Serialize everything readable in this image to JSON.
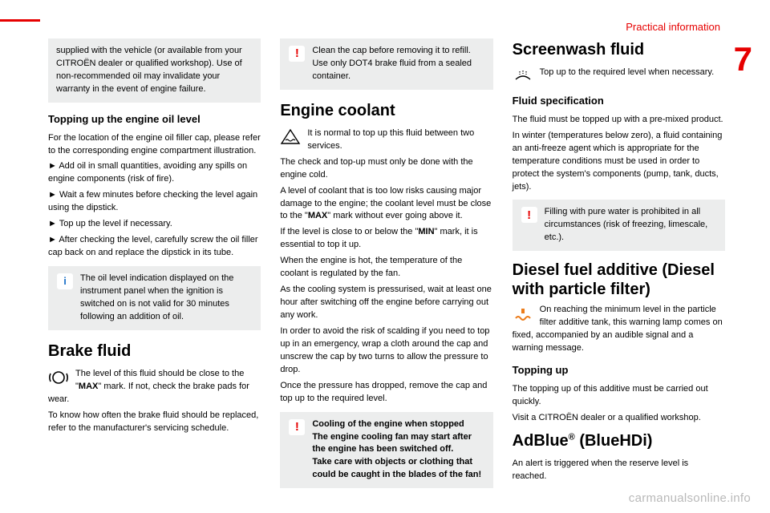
{
  "layout": {
    "section_label": "Practical information",
    "section_label_color": "#e60000",
    "section_number": "7",
    "section_number_color": "#e60000",
    "red_bar_width": 50,
    "watermark": "carmanualsonline.info"
  },
  "col1": {
    "box1": "supplied with the vehicle (or available from your CITROËN dealer or qualified workshop). Use of non-recommended oil may invalidate your warranty in the event of engine failure.",
    "h_topping": "Topping up the engine oil level",
    "topping_p1": "For the location of the engine oil filler cap, please refer to the corresponding engine compartment illustration.",
    "b1": "►  Add oil in small quantities, avoiding any spills on engine components (risk of fire).",
    "b2": "►  Wait a few minutes before checking the level again using the dipstick.",
    "b3": "►  Top up the level if necessary.",
    "b4": "►  After checking the level, carefully screw the oil filler cap back on and replace the dipstick in its tube.",
    "info_box": "The oil level indication displayed on the instrument panel when the ignition is switched on is not valid for 30 minutes following an addition of oil.",
    "h_brake": "Brake fluid",
    "brake_p1a": "The level of this fluid should be close to the \"",
    "brake_max": "MAX",
    "brake_p1b": "\" mark. If not, check the brake pads for wear.",
    "brake_p2": "To know how often the brake fluid should be replaced, refer to the manufacturer's servicing schedule."
  },
  "col2": {
    "warn1": "Clean the cap before removing it to refill. Use only DOT4 brake fluid from a sealed container.",
    "h_coolant": "Engine coolant",
    "coolant_icon_p": "It is normal to top up this fluid between two services.",
    "coolant_p1": "The check and top-up must only be done with the engine cold.",
    "coolant_p2a": "A level of coolant that is too low risks causing major damage to the engine; the coolant level must be close to the \"",
    "coolant_max": "MAX",
    "coolant_p2b": "\" mark without ever going above it.",
    "coolant_p3a": "If the level is close to or below the \"",
    "coolant_min": "MIN",
    "coolant_p3b": "\" mark, it is essential to top it up.",
    "coolant_p4": "When the engine is hot, the temperature of the coolant is regulated by the fan.",
    "coolant_p5": "As the cooling system is pressurised, wait at least one hour after switching off the engine before carrying out any work.",
    "coolant_p6": "In order to avoid the risk of scalding if you need to top up in an emergency, wrap a cloth around the cap and unscrew the cap by two turns to allow the pressure to drop.",
    "coolant_p7": "Once the pressure has dropped, remove the cap and top up to the required level.",
    "warn2_h": "Cooling of the engine when stopped",
    "warn2_b1": "The engine cooling fan may start after the engine has been switched off.",
    "warn2_b2": "Take care with objects or clothing that could be caught in the blades of the fan!"
  },
  "col3": {
    "h_screen": "Screenwash fluid",
    "screen_icon_p": "Top up to the required level when necessary.",
    "h_spec": "Fluid specification",
    "spec_p1": "The fluid must be topped up with a pre-mixed product.",
    "spec_p2": "In winter (temperatures below zero), a fluid containing an anti-freeze agent which is appropriate for the temperature conditions must be used in order to protect the system's components (pump, tank, ducts, jets).",
    "warn1": "Filling with pure water is prohibited in all circumstances (risk of freezing, limescale, etc.).",
    "h_diesel": "Diesel fuel additive (Diesel with particle filter)",
    "diesel_icon_p": "On reaching the minimum level in the particle filter additive tank, this warning lamp comes on fixed, accompanied by an audible signal and a warning message.",
    "h_topup": "Topping up",
    "topup_p1": "The topping up of this additive must be carried out quickly.",
    "topup_p2": "Visit a CITROËN dealer or a qualified workshop.",
    "h_adblue_a": "AdBlue",
    "h_adblue_sup": "®",
    "h_adblue_b": " (BlueHDi)",
    "adblue_p1": "An alert is triggered when the reserve level is reached."
  }
}
